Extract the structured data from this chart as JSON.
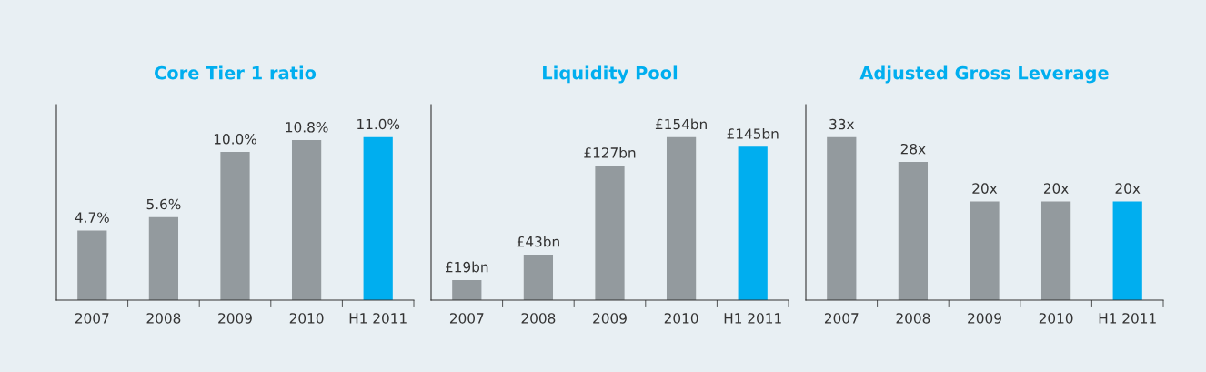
{
  "chart_data": [
    {
      "type": "bar",
      "title": "Core Tier 1 ratio",
      "categories": [
        "2007",
        "2008",
        "2009",
        "2010",
        "H1 2011"
      ],
      "values": [
        4.7,
        5.6,
        10.0,
        10.8,
        11.0
      ],
      "colors": [
        "#939a9e",
        "#939a9e",
        "#939a9e",
        "#939a9e",
        "#00aeef"
      ],
      "value_labels": [
        "4.7%",
        "5.6%",
        "10.0%",
        "10.8%",
        "11.0%"
      ]
    },
    {
      "type": "bar",
      "title": "Liquidity Pool",
      "categories": [
        "2007",
        "2008",
        "2009",
        "2010",
        "H1 2011"
      ],
      "values": [
        19,
        43,
        127,
        154,
        145
      ],
      "colors": [
        "#939a9e",
        "#939a9e",
        "#939a9e",
        "#939a9e",
        "#00aeef"
      ],
      "value_labels": [
        "£19bn",
        "£43bn",
        "£127bn",
        "£154bn",
        "£145bn"
      ]
    },
    {
      "type": "bar",
      "title": "Adjusted Gross Leverage",
      "categories": [
        "2007",
        "2008",
        "2009",
        "2010",
        "H1 2011"
      ],
      "values": [
        33,
        28,
        20,
        20,
        20
      ],
      "colors": [
        "#939a9e",
        "#939a9e",
        "#939a9e",
        "#939a9e",
        "#00aeef"
      ],
      "value_labels": [
        "33x",
        "28x",
        "20x",
        "20x",
        "20x"
      ]
    }
  ]
}
